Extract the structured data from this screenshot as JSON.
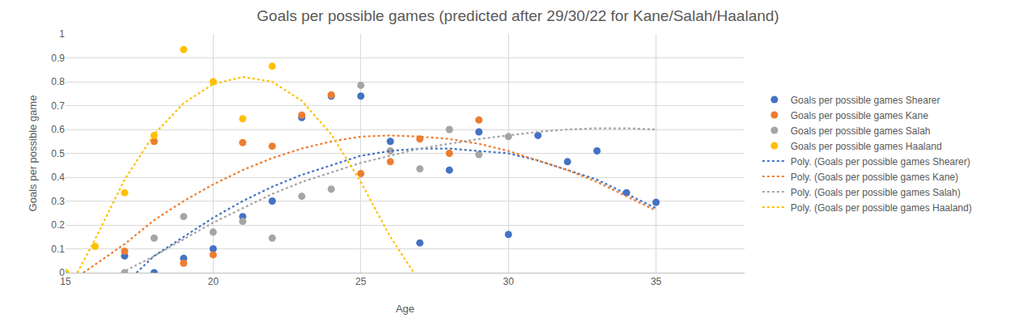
{
  "chart_data": {
    "type": "scatter",
    "title": "Goals per possible games (predicted after 29/30/22 for Kane/Salah/Haaland)",
    "x_label": "Age",
    "y_label": "Goals per possible game",
    "xlim": [
      15,
      38
    ],
    "xticks": [
      15,
      20,
      25,
      30,
      35
    ],
    "ylim": [
      0,
      1
    ],
    "yticks": [
      0,
      0.1,
      0.2,
      0.3,
      0.4,
      0.5,
      0.6,
      0.7,
      0.8,
      0.9,
      1
    ],
    "grid": true,
    "legend": "right",
    "series": [
      {
        "name": "Goals per possible games Shearer",
        "type": "scatter",
        "marker": "circle",
        "color": "#4472C4",
        "x": [
          17,
          18,
          19,
          20,
          21,
          22,
          23,
          24,
          25,
          26,
          27,
          28,
          29,
          30,
          31,
          32,
          33,
          34,
          35
        ],
        "values": [
          0.07,
          0.0,
          0.06,
          0.1,
          0.235,
          0.3,
          0.65,
          0.74,
          0.74,
          0.55,
          0.125,
          0.43,
          0.59,
          0.16,
          0.575,
          0.465,
          0.51,
          0.335,
          0.295
        ]
      },
      {
        "name": "Goals per possible games Kane",
        "type": "scatter",
        "marker": "circle",
        "color": "#ED7D31",
        "x": [
          17,
          18,
          19,
          20,
          21,
          22,
          23,
          24,
          25,
          26,
          27,
          28,
          29
        ],
        "values": [
          0.09,
          0.55,
          0.04,
          0.075,
          0.545,
          0.53,
          0.66,
          0.745,
          0.415,
          0.465,
          0.56,
          0.5,
          0.64
        ]
      },
      {
        "name": "Goals per possible games Salah",
        "type": "scatter",
        "marker": "circle",
        "color": "#A5A5A5",
        "x": [
          17,
          18,
          19,
          20,
          21,
          22,
          23,
          24,
          25,
          26,
          27,
          28,
          29,
          30
        ],
        "values": [
          0.0,
          0.145,
          0.235,
          0.17,
          0.215,
          0.145,
          0.32,
          0.35,
          0.785,
          0.51,
          0.435,
          0.6,
          0.495,
          0.57
        ]
      },
      {
        "name": "Goals per possible games Haaland",
        "type": "scatter",
        "marker": "circle",
        "color": "#FFC000",
        "x": [
          15,
          16,
          17,
          18,
          19,
          20,
          21,
          22
        ],
        "values": [
          0.0,
          0.11,
          0.335,
          0.575,
          0.935,
          0.8,
          0.645,
          0.865
        ]
      },
      {
        "name": "Poly. (Goals per possible games Shearer)",
        "type": "line",
        "line_style": "dotted",
        "color": "#4472C4",
        "x": [
          17.4,
          18,
          19,
          20,
          21,
          22,
          23,
          24,
          25,
          26,
          27,
          28,
          29,
          30,
          31,
          32,
          33,
          34,
          35
        ],
        "values": [
          0,
          0.07,
          0.15,
          0.23,
          0.3,
          0.36,
          0.41,
          0.45,
          0.49,
          0.51,
          0.52,
          0.52,
          0.51,
          0.5,
          0.47,
          0.43,
          0.39,
          0.33,
          0.27
        ]
      },
      {
        "name": "Poly. (Goals per possible games Kane)",
        "type": "line",
        "line_style": "dotted",
        "color": "#ED7D31",
        "x": [
          15.6,
          17,
          18,
          19,
          20,
          21,
          22,
          23,
          24,
          25,
          26,
          27,
          28,
          29,
          30,
          31,
          32,
          33,
          34,
          35
        ],
        "values": [
          0,
          0.12,
          0.22,
          0.3,
          0.37,
          0.43,
          0.48,
          0.52,
          0.55,
          0.57,
          0.575,
          0.57,
          0.56,
          0.54,
          0.51,
          0.47,
          0.43,
          0.38,
          0.32,
          0.26
        ]
      },
      {
        "name": "Poly. (Goals per possible games Salah)",
        "type": "line",
        "line_style": "dotted",
        "color": "#A5A5A5",
        "x": [
          16.9,
          18,
          19,
          20,
          21,
          22,
          23,
          24,
          25,
          26,
          27,
          28,
          29,
          30,
          31,
          32,
          33,
          34,
          35
        ],
        "values": [
          0,
          0.07,
          0.14,
          0.21,
          0.27,
          0.33,
          0.38,
          0.42,
          0.46,
          0.49,
          0.52,
          0.54,
          0.56,
          0.575,
          0.59,
          0.6,
          0.605,
          0.605,
          0.6
        ]
      },
      {
        "name": "Poly. (Goals per possible games Haaland)",
        "type": "line",
        "line_style": "dotted",
        "color": "#FFC000",
        "x": [
          15.4,
          16,
          17,
          18,
          19,
          20,
          21,
          22,
          23,
          24,
          25,
          26,
          26.8
        ],
        "values": [
          0,
          0.14,
          0.39,
          0.58,
          0.71,
          0.79,
          0.82,
          0.8,
          0.72,
          0.58,
          0.38,
          0.15,
          0
        ]
      }
    ]
  }
}
